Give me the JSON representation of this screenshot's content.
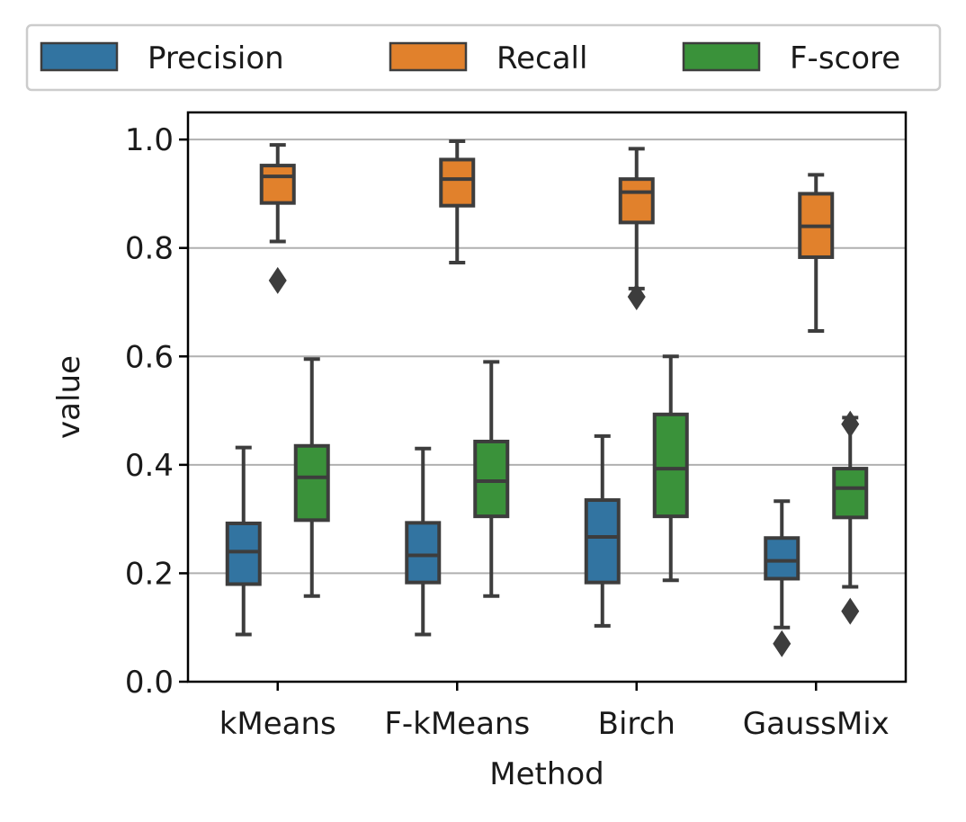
{
  "chart_data": {
    "type": "box",
    "xlabel": "Method",
    "ylabel": "value",
    "ylim": [
      0.0,
      1.05
    ],
    "yticks": [
      0.0,
      0.2,
      0.4,
      0.6,
      0.8,
      1.0
    ],
    "ytick_labels": [
      "0.0",
      "0.2",
      "0.4",
      "0.6",
      "0.8",
      "1.0"
    ],
    "grid": "horizontal",
    "legend_position": "top",
    "categories": [
      "kMeans",
      "F-kMeans",
      "Birch",
      "GaussMix"
    ],
    "series": [
      {
        "name": "Precision",
        "color": "#3274a1",
        "boxes": [
          {
            "whisker_low": 0.087,
            "q1": 0.18,
            "median": 0.24,
            "q3": 0.292,
            "whisker_high": 0.432,
            "outliers": []
          },
          {
            "whisker_low": 0.087,
            "q1": 0.183,
            "median": 0.233,
            "q3": 0.293,
            "whisker_high": 0.43,
            "outliers": []
          },
          {
            "whisker_low": 0.103,
            "q1": 0.183,
            "median": 0.267,
            "q3": 0.335,
            "whisker_high": 0.453,
            "outliers": []
          },
          {
            "whisker_low": 0.1,
            "q1": 0.19,
            "median": 0.223,
            "q3": 0.265,
            "whisker_high": 0.333,
            "outliers": [
              0.07
            ]
          }
        ]
      },
      {
        "name": "Recall",
        "color": "#e1812c",
        "boxes": [
          {
            "whisker_low": 0.812,
            "q1": 0.883,
            "median": 0.932,
            "q3": 0.952,
            "whisker_high": 0.99,
            "outliers": [
              0.74
            ]
          },
          {
            "whisker_low": 0.773,
            "q1": 0.878,
            "median": 0.927,
            "q3": 0.963,
            "whisker_high": 0.997,
            "outliers": []
          },
          {
            "whisker_low": 0.725,
            "q1": 0.847,
            "median": 0.903,
            "q3": 0.927,
            "whisker_high": 0.983,
            "outliers": [
              0.71
            ]
          },
          {
            "whisker_low": 0.647,
            "q1": 0.783,
            "median": 0.84,
            "q3": 0.9,
            "whisker_high": 0.935,
            "outliers": []
          }
        ]
      },
      {
        "name": "F-score",
        "color": "#3a923a",
        "boxes": [
          {
            "whisker_low": 0.158,
            "q1": 0.298,
            "median": 0.377,
            "q3": 0.435,
            "whisker_high": 0.595,
            "outliers": []
          },
          {
            "whisker_low": 0.158,
            "q1": 0.305,
            "median": 0.37,
            "q3": 0.443,
            "whisker_high": 0.59,
            "outliers": []
          },
          {
            "whisker_low": 0.187,
            "q1": 0.305,
            "median": 0.393,
            "q3": 0.493,
            "whisker_high": 0.6,
            "outliers": []
          },
          {
            "whisker_low": 0.175,
            "q1": 0.303,
            "median": 0.357,
            "q3": 0.393,
            "whisker_high": 0.487,
            "outliers": [
              0.475,
              0.13
            ]
          }
        ]
      }
    ]
  }
}
